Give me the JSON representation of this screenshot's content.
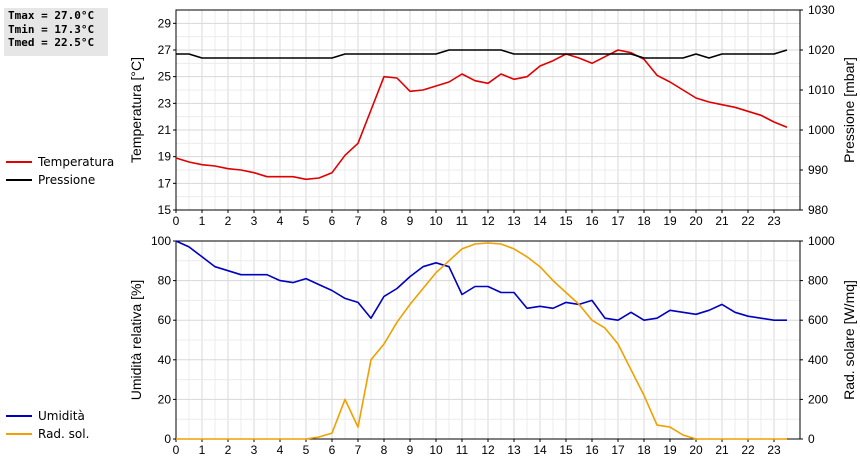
{
  "stats": {
    "tmax": "Tmax = 27.0°C",
    "tmin": "Tmin = 17.3°C",
    "tmed": "Tmed = 22.5°C"
  },
  "legend_top": [
    {
      "label": "Temperatura",
      "color": "#e00000"
    },
    {
      "label": "Pressione",
      "color": "#000000"
    }
  ],
  "legend_bottom": [
    {
      "label": "Umidità",
      "color": "#0000c0"
    },
    {
      "label": "Rad. sol.",
      "color": "#f0a000"
    }
  ],
  "chart_data": [
    {
      "type": "line",
      "xlabel": "",
      "x_ticks": [
        0,
        1,
        2,
        3,
        4,
        5,
        6,
        7,
        8,
        9,
        10,
        11,
        12,
        13,
        14,
        15,
        16,
        17,
        18,
        19,
        20,
        21,
        22,
        23
      ],
      "xlim": [
        0,
        24
      ],
      "ylabel": "Temperatura [°C]",
      "ylim": [
        15,
        30
      ],
      "y_ticks": [
        15,
        17,
        19,
        21,
        23,
        25,
        27,
        29
      ],
      "y2label": "Pressione [mbar]",
      "y2lim": [
        980,
        1030
      ],
      "y2_ticks": [
        980,
        990,
        1000,
        1010,
        1020,
        1030
      ],
      "grid": true,
      "series": [
        {
          "name": "Temperatura",
          "axis": "left",
          "color": "#e00000",
          "x": [
            0,
            0.5,
            1,
            1.5,
            2,
            2.5,
            3,
            3.5,
            4,
            4.5,
            5,
            5.5,
            6,
            6.5,
            7,
            7.5,
            8,
            8.5,
            9,
            9.5,
            10,
            10.5,
            11,
            11.5,
            12,
            12.5,
            13,
            13.5,
            14,
            14.5,
            15,
            15.5,
            16,
            16.5,
            17,
            17.5,
            18,
            18.5,
            19,
            19.5,
            20,
            20.5,
            21,
            21.5,
            22,
            22.5,
            23,
            23.5
          ],
          "y": [
            18.9,
            18.6,
            18.4,
            18.3,
            18.1,
            18.0,
            17.8,
            17.5,
            17.5,
            17.5,
            17.3,
            17.4,
            17.8,
            19.1,
            20.0,
            22.5,
            25.0,
            24.9,
            23.9,
            24.0,
            24.3,
            24.6,
            25.2,
            24.7,
            24.5,
            25.2,
            24.8,
            25.0,
            25.8,
            26.2,
            26.7,
            26.4,
            26.0,
            26.5,
            27.0,
            26.8,
            26.3,
            25.1,
            24.6,
            24.0,
            23.4,
            23.1,
            22.9,
            22.7,
            22.4,
            22.1,
            21.6,
            21.2
          ]
        },
        {
          "name": "Pressione",
          "axis": "right",
          "color": "#000000",
          "x": [
            0,
            0.5,
            1,
            1.5,
            2,
            2.5,
            3,
            3.5,
            4,
            4.5,
            5,
            5.5,
            6,
            6.5,
            7,
            7.5,
            8,
            8.5,
            9,
            9.5,
            10,
            10.5,
            11,
            11.5,
            12,
            12.5,
            13,
            13.5,
            14,
            14.5,
            15,
            15.5,
            16,
            16.5,
            17,
            17.5,
            18,
            18.5,
            19,
            19.5,
            20,
            20.5,
            21,
            21.5,
            22,
            22.5,
            23,
            23.5
          ],
          "y": [
            1019,
            1019,
            1018,
            1018,
            1018,
            1018,
            1018,
            1018,
            1018,
            1018,
            1018,
            1018,
            1018,
            1019,
            1019,
            1019,
            1019,
            1019,
            1019,
            1019,
            1019,
            1020,
            1020,
            1020,
            1020,
            1020,
            1019,
            1019,
            1019,
            1019,
            1019,
            1019,
            1019,
            1019,
            1019,
            1019,
            1018,
            1018,
            1018,
            1018,
            1019,
            1018,
            1019,
            1019,
            1019,
            1019,
            1019,
            1020
          ]
        }
      ]
    },
    {
      "type": "line",
      "xlabel": "",
      "x_ticks": [
        0,
        1,
        2,
        3,
        4,
        5,
        6,
        7,
        8,
        9,
        10,
        11,
        12,
        13,
        14,
        15,
        16,
        17,
        18,
        19,
        20,
        21,
        22,
        23
      ],
      "xlim": [
        0,
        24
      ],
      "ylabel": "Umidità relativa [%]",
      "ylim": [
        0,
        100
      ],
      "y_ticks": [
        0,
        20,
        40,
        60,
        80,
        100
      ],
      "y2label": "Rad. solare [W/mq]",
      "y2lim": [
        0,
        1000
      ],
      "y2_ticks": [
        0,
        200,
        400,
        600,
        800,
        1000
      ],
      "grid": true,
      "series": [
        {
          "name": "Umidità",
          "axis": "left",
          "color": "#0000c0",
          "x": [
            0,
            0.5,
            1,
            1.5,
            2,
            2.5,
            3,
            3.5,
            4,
            4.5,
            5,
            5.5,
            6,
            6.5,
            7,
            7.5,
            8,
            8.5,
            9,
            9.5,
            10,
            10.5,
            11,
            11.5,
            12,
            12.5,
            13,
            13.5,
            14,
            14.5,
            15,
            15.5,
            16,
            16.5,
            17,
            17.5,
            18,
            18.5,
            19,
            19.5,
            20,
            20.5,
            21,
            21.5,
            22,
            22.5,
            23,
            23.5
          ],
          "y": [
            100,
            97,
            92,
            87,
            85,
            83,
            83,
            83,
            80,
            79,
            81,
            78,
            75,
            71,
            69,
            61,
            72,
            76,
            82,
            87,
            89,
            87,
            73,
            77,
            77,
            74,
            74,
            66,
            67,
            66,
            69,
            68,
            70,
            61,
            60,
            64,
            60,
            61,
            65,
            64,
            63,
            65,
            68,
            64,
            62,
            61,
            60,
            60
          ]
        },
        {
          "name": "Rad. sol.",
          "axis": "right",
          "color": "#f0a000",
          "x": [
            0,
            0.5,
            1,
            1.5,
            2,
            2.5,
            3,
            3.5,
            4,
            4.5,
            5,
            5.5,
            6,
            6.5,
            7,
            7.5,
            8,
            8.5,
            9,
            9.5,
            10,
            10.5,
            11,
            11.5,
            12,
            12.5,
            13,
            13.5,
            14,
            14.5,
            15,
            15.5,
            16,
            16.5,
            17,
            17.5,
            18,
            18.5,
            19,
            19.5,
            20,
            20.5,
            21,
            21.5,
            22,
            22.5,
            23,
            23.5
          ],
          "y": [
            0,
            0,
            0,
            0,
            0,
            0,
            0,
            0,
            0,
            0,
            0,
            10,
            30,
            200,
            60,
            400,
            480,
            590,
            680,
            760,
            840,
            900,
            960,
            985,
            990,
            985,
            960,
            920,
            870,
            800,
            740,
            680,
            600,
            560,
            480,
            350,
            220,
            70,
            60,
            20,
            0,
            0,
            0,
            0,
            0,
            0,
            0,
            0
          ]
        }
      ]
    }
  ]
}
